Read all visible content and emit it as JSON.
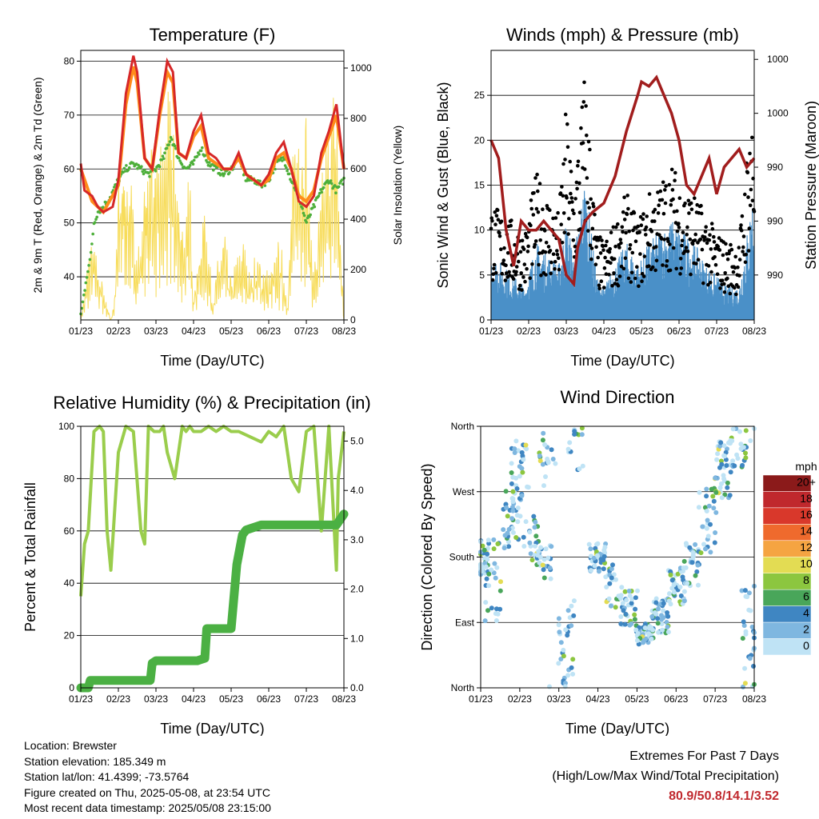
{
  "time_ticks": [
    "01/23",
    "02/23",
    "03/23",
    "04/23",
    "05/23",
    "06/23",
    "07/23",
    "08/23"
  ],
  "time_xlabel": "Time (Day/UTC)",
  "colors": {
    "temp2m": "#d62728",
    "temp9m": "#ff8c1a",
    "dew": "#4daf3a",
    "solar": "#f7dc5a",
    "gust": "#000000",
    "wind": "#4a90c8",
    "pressure": "#a11d1d",
    "rh": "#9acd4c",
    "precip": "#4bb043"
  },
  "chart_data": [
    {
      "type": "line",
      "title": "Temperature (F)",
      "ylabel": "2m & 9m T (Red, Orange) & 2m Td (Green)",
      "y2label": "Solar Insolation (Yellow)",
      "ylim": [
        32,
        82
      ],
      "y2lim": [
        0,
        1070
      ],
      "yticks": [
        40,
        50,
        60,
        70,
        80
      ],
      "y2ticks": [
        0,
        200,
        400,
        600,
        800,
        1000
      ],
      "grid": true,
      "series": [
        {
          "color_key": "temp2m",
          "x": [
            0,
            0.1,
            0.3,
            0.45,
            0.6,
            0.85,
            1.0,
            1.2,
            1.4,
            1.5,
            1.7,
            1.9,
            2.1,
            2.3,
            2.45,
            2.6,
            2.8,
            3.0,
            3.2,
            3.4,
            3.6,
            3.8,
            4.0,
            4.2,
            4.4,
            4.6,
            4.8,
            5.0,
            5.2,
            5.4,
            5.6,
            5.8,
            6.0,
            6.2,
            6.4,
            6.6,
            6.8,
            7.0
          ],
          "y": [
            61,
            56,
            55,
            53,
            52,
            53,
            58,
            74,
            81,
            78,
            62,
            60,
            71,
            80,
            78,
            63,
            62,
            67,
            70,
            63,
            62,
            60,
            60,
            63,
            59,
            58,
            57,
            59,
            63,
            65,
            60,
            54,
            53,
            55,
            63,
            67,
            72,
            60
          ]
        },
        {
          "color_key": "temp9m",
          "x": [
            0,
            0.3,
            0.6,
            1.0,
            1.2,
            1.4,
            1.5,
            1.7,
            1.9,
            2.1,
            2.3,
            2.45,
            2.6,
            2.8,
            3.0,
            3.2,
            3.4,
            3.6,
            3.8,
            4.0,
            4.2,
            4.4,
            4.6,
            4.8,
            5.0,
            5.2,
            5.4,
            5.6,
            5.8,
            6.0,
            6.2,
            6.4,
            6.6,
            6.8,
            7.0
          ],
          "y": [
            60,
            54,
            52,
            57,
            72,
            79,
            76,
            62,
            60,
            70,
            78,
            76,
            63,
            62,
            66,
            68,
            62,
            61,
            60,
            60,
            62,
            59,
            58,
            57,
            58,
            62,
            63,
            60,
            55,
            54,
            56,
            62,
            66,
            70,
            60
          ]
        },
        {
          "color_key": "dew",
          "x": [
            0,
            0.05,
            0.15,
            0.25,
            0.35,
            0.45,
            0.6,
            0.8,
            1.0,
            1.2,
            1.4,
            1.6,
            1.8,
            2.0,
            2.2,
            2.4,
            2.6,
            2.8,
            3.0,
            3.2,
            3.4,
            3.6,
            3.8,
            4.0,
            4.2,
            4.4,
            4.6,
            4.8,
            5.0,
            5.2,
            5.4,
            5.6,
            5.8,
            6.0,
            6.2,
            6.4,
            6.6,
            6.8,
            7.0
          ],
          "y": [
            33,
            35,
            40,
            43,
            50,
            52,
            53,
            55,
            58,
            60,
            61,
            60,
            59,
            60,
            62,
            66,
            62,
            60,
            61,
            64,
            61,
            60,
            59,
            60,
            62,
            58,
            58,
            57,
            58,
            61,
            62,
            58,
            55,
            50,
            53,
            56,
            58,
            56,
            58
          ]
        },
        {
          "color_key": "solar",
          "x": [
            0,
            0.3,
            0.6,
            0.8,
            0.9,
            1.0,
            1.1,
            1.3,
            1.5,
            1.7,
            1.9,
            2.0,
            2.2,
            2.4,
            2.6,
            2.8,
            2.9,
            3.0,
            3.3,
            3.5,
            3.8,
            4.0,
            4.3,
            4.5,
            4.7,
            5.0,
            5.3,
            5.5,
            5.7,
            5.9,
            6.0,
            6.1,
            6.2,
            6.4,
            6.6,
            6.8,
            6.85,
            7.0
          ],
          "y2": [
            0,
            400,
            150,
            0,
            100,
            600,
            850,
            650,
            300,
            600,
            900,
            650,
            800,
            1000,
            600,
            400,
            700,
            150,
            500,
            100,
            400,
            200,
            350,
            250,
            300,
            200,
            350,
            100,
            900,
            1050,
            900,
            500,
            200,
            550,
            900,
            1000,
            700,
            0
          ]
        }
      ]
    },
    {
      "type": "scatter",
      "title": "Winds (mph) & Pressure (mb)",
      "ylabel": "Sonic Wind & Gust (Blue, Black)",
      "y2label": "Station Pressure (Maroon)",
      "ylim": [
        0,
        30
      ],
      "yticks": [
        0,
        5,
        10,
        15,
        20,
        25
      ],
      "y2ticks_labels": [
        "990",
        "990",
        "990",
        "1000",
        "1000"
      ],
      "y2ticks_at": [
        5,
        11,
        17,
        23,
        29
      ],
      "grid": true,
      "gust_envelope": {
        "x": [
          0,
          0.3,
          0.6,
          0.9,
          1.2,
          1.5,
          1.8,
          2.0,
          2.2,
          2.5,
          2.8,
          3.0,
          3.3,
          3.6,
          3.9,
          4.2,
          4.5,
          4.8,
          5.1,
          5.4,
          5.7,
          6.0,
          6.3,
          6.6,
          6.9,
          7.0
        ],
        "y": [
          12,
          11,
          10,
          9,
          15,
          13,
          11,
          22,
          14,
          26,
          9,
          8,
          10,
          13,
          10,
          13,
          14,
          16,
          14,
          13,
          11,
          9,
          8,
          8,
          22,
          20
        ]
      },
      "wind_envelope": {
        "x": [
          0,
          0.3,
          0.6,
          0.9,
          1.2,
          1.5,
          1.8,
          2.0,
          2.2,
          2.5,
          2.8,
          3.0,
          3.3,
          3.6,
          3.9,
          4.2,
          4.5,
          4.8,
          5.1,
          5.4,
          5.7,
          6.0,
          6.3,
          6.6,
          6.9,
          7.0
        ],
        "y": [
          6,
          5,
          4,
          3,
          7,
          6,
          5,
          9,
          6,
          13,
          4,
          3,
          5,
          7,
          5,
          7,
          8,
          9,
          8,
          7,
          5,
          4,
          3,
          3,
          10,
          12
        ]
      },
      "series": [
        {
          "name": "",
          "color_key": "pressure",
          "x": [
            0,
            0.2,
            0.4,
            0.6,
            0.8,
            1.0,
            1.2,
            1.4,
            1.6,
            1.8,
            2.0,
            2.2,
            2.3,
            2.5,
            2.7,
            3.0,
            3.3,
            3.6,
            3.9,
            4.0,
            4.2,
            4.4,
            4.6,
            4.8,
            5.0,
            5.2,
            5.4,
            5.6,
            5.8,
            6.0,
            6.2,
            6.4,
            6.6,
            6.8,
            7.0
          ],
          "y": [
            20,
            18,
            10,
            6,
            11,
            10,
            10,
            11,
            10,
            9,
            5,
            4,
            8,
            11,
            12,
            13,
            16,
            21,
            25,
            26.5,
            26,
            27,
            25,
            23,
            20,
            15,
            14,
            16,
            18,
            14,
            17,
            18,
            19,
            17,
            18
          ]
        }
      ]
    },
    {
      "type": "line",
      "title": "Relative Humidity (%) & Precipitation (in)",
      "ylabel": "Percent & Total Rainfall",
      "ylim": [
        0,
        100
      ],
      "yticks": [
        0,
        20,
        40,
        60,
        80,
        100
      ],
      "y2ticks": [
        "0.0",
        "1.0",
        "2.0",
        "3.0",
        "4.0",
        "5.0"
      ],
      "grid": true,
      "series": [
        {
          "color_key": "rh",
          "x": [
            0,
            0.1,
            0.2,
            0.35,
            0.5,
            0.6,
            0.7,
            0.8,
            1.0,
            1.2,
            1.4,
            1.6,
            1.7,
            1.8,
            1.95,
            2.1,
            2.2,
            2.3,
            2.5,
            2.7,
            2.8,
            2.9,
            3.0,
            3.2,
            3.4,
            3.6,
            3.8,
            4.0,
            4.2,
            4.5,
            4.8,
            5.0,
            5.2,
            5.4,
            5.6,
            5.8,
            6.0,
            6.2,
            6.4,
            6.6,
            6.8,
            6.85,
            7.0
          ],
          "y": [
            35,
            55,
            60,
            98,
            100,
            98,
            60,
            45,
            90,
            100,
            98,
            60,
            55,
            100,
            98,
            98,
            100,
            90,
            80,
            100,
            98,
            100,
            98,
            98,
            100,
            98,
            100,
            98,
            98,
            96,
            94,
            98,
            96,
            100,
            80,
            75,
            98,
            100,
            60,
            100,
            45,
            80,
            98
          ]
        },
        {
          "color_key": "precip",
          "x": [
            0,
            0.2,
            0.25,
            1.85,
            1.9,
            2.0,
            2.1,
            3.1,
            3.3,
            3.35,
            4.0,
            4.15,
            4.3,
            4.4,
            4.8,
            5.0,
            5.4,
            6.0,
            6.8,
            7.0
          ],
          "y_in": [
            0,
            0,
            0.15,
            0.15,
            0.5,
            0.55,
            0.55,
            0.55,
            0.6,
            1.2,
            1.2,
            2.5,
            3.1,
            3.2,
            3.3,
            3.3,
            3.3,
            3.3,
            3.3,
            3.52
          ]
        }
      ]
    },
    {
      "type": "scatter",
      "title": "Wind Direction",
      "ylabel": "Direction (Colored By Speed)",
      "yticks": [
        "North",
        "East",
        "South",
        "West",
        "North"
      ],
      "grid": true,
      "colorbar_unit": "mph",
      "colorbar_labels": [
        "20+",
        "18",
        "16",
        "14",
        "12",
        "10",
        "8",
        "6",
        "4",
        "2",
        "0"
      ],
      "colorbar_colors": [
        "#8b1a1a",
        "#c0282d",
        "#d9382b",
        "#ef6a2d",
        "#f5a442",
        "#e3dc53",
        "#8cc63f",
        "#49a65a",
        "#3f86c2",
        "#7fb7e0",
        "#bfe3f5"
      ],
      "clusters": [
        {
          "x": 0.0,
          "dir": 180,
          "spread": 25,
          "n": 30
        },
        {
          "x": 0.3,
          "dir": 150,
          "spread": 60,
          "n": 30
        },
        {
          "x": 0.8,
          "dir": 240,
          "spread": 50,
          "n": 40
        },
        {
          "x": 1.0,
          "dir": 300,
          "spread": 40,
          "n": 30
        },
        {
          "x": 1.3,
          "dir": 200,
          "spread": 40,
          "n": 20
        },
        {
          "x": 1.6,
          "dir": 175,
          "spread": 25,
          "n": 25
        },
        {
          "x": 1.7,
          "dir": 320,
          "spread": 45,
          "n": 20
        },
        {
          "x": 2.2,
          "dir": 60,
          "spread": 60,
          "n": 30
        },
        {
          "x": 2.4,
          "dir": 330,
          "spread": 30,
          "n": 15
        },
        {
          "x": 3.0,
          "dir": 180,
          "spread": 20,
          "n": 35
        },
        {
          "x": 3.4,
          "dir": 140,
          "spread": 30,
          "n": 25
        },
        {
          "x": 3.8,
          "dir": 110,
          "spread": 25,
          "n": 30
        },
        {
          "x": 4.2,
          "dir": 75,
          "spread": 15,
          "n": 45
        },
        {
          "x": 4.6,
          "dir": 100,
          "spread": 25,
          "n": 40
        },
        {
          "x": 5.0,
          "dir": 140,
          "spread": 25,
          "n": 40
        },
        {
          "x": 5.4,
          "dir": 170,
          "spread": 30,
          "n": 30
        },
        {
          "x": 5.8,
          "dir": 230,
          "spread": 45,
          "n": 30
        },
        {
          "x": 6.2,
          "dir": 300,
          "spread": 40,
          "n": 40
        },
        {
          "x": 6.6,
          "dir": 330,
          "spread": 30,
          "n": 25
        },
        {
          "x": 6.9,
          "dir": 60,
          "spread": 80,
          "n": 30
        }
      ]
    }
  ],
  "info": {
    "location": "Location: Brewster",
    "elevation": "Station elevation: 185.349 m",
    "latlon": "Station lat/lon: 41.4399; -73.5764",
    "created": "Figure created on Thu, 2025-05-08, at 23:54 UTC",
    "recent": "Most recent data timestamp: 2025/05/08 23:15:00"
  },
  "extremes": {
    "title": "Extremes For Past 7 Days",
    "subtitle": "(High/Low/Max Wind/Total Precipitation)",
    "values": "80.9/50.8/14.1/3.52"
  }
}
